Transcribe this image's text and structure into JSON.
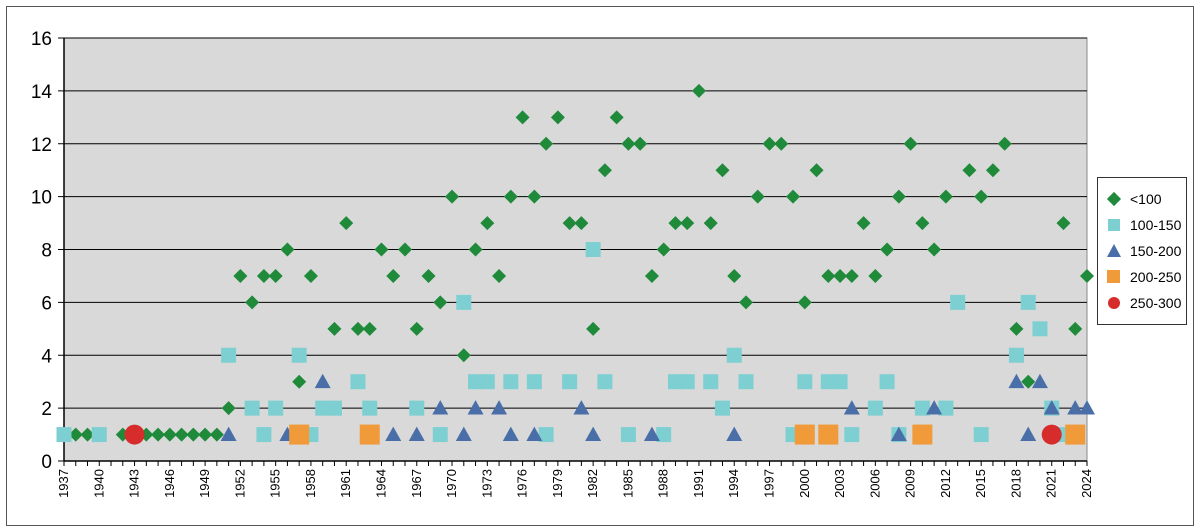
{
  "chart_data": {
    "type": "scatter",
    "title": "",
    "xlabel": "",
    "ylabel": "",
    "ylim": [
      0,
      16
    ],
    "xlim": [
      1937,
      2024
    ],
    "y_ticks": [
      "0",
      "2",
      "4",
      "6",
      "8",
      "10",
      "12",
      "14",
      "16"
    ],
    "x_ticks": [
      "1937",
      "1940",
      "1943",
      "1946",
      "1949",
      "1952",
      "1955",
      "1958",
      "1961",
      "1964",
      "1967",
      "1970",
      "1973",
      "1976",
      "1979",
      "1982",
      "1985",
      "1988",
      "1991",
      "1994",
      "1997",
      "2000",
      "2003",
      "2006",
      "2009",
      "2012",
      "2015",
      "2018",
      "2021",
      "2024"
    ],
    "grid": true,
    "legend_position": "right",
    "series": [
      {
        "name": "<100",
        "marker": "diamond",
        "color": "#1f8a3a",
        "x": [
          1938,
          1939,
          1940,
          1942,
          1944,
          1945,
          1946,
          1947,
          1948,
          1949,
          1950,
          1951,
          1952,
          1953,
          1954,
          1955,
          1956,
          1957,
          1958,
          1960,
          1961,
          1962,
          1963,
          1964,
          1965,
          1966,
          1967,
          1968,
          1969,
          1970,
          1971,
          1972,
          1973,
          1974,
          1975,
          1976,
          1977,
          1978,
          1979,
          1980,
          1981,
          1982,
          1983,
          1984,
          1985,
          1986,
          1987,
          1988,
          1989,
          1990,
          1991,
          1992,
          1993,
          1994,
          1995,
          1996,
          1997,
          1998,
          1999,
          2000,
          2001,
          2002,
          2003,
          2004,
          2005,
          2006,
          2007,
          2008,
          2009,
          2010,
          2011,
          2012,
          2014,
          2015,
          2016,
          2017,
          2018,
          2019,
          2020,
          2022,
          2023,
          2024
        ],
        "y": [
          1,
          1,
          1,
          1,
          1,
          1,
          1,
          1,
          1,
          1,
          1,
          2,
          7,
          6,
          7,
          7,
          8,
          3,
          7,
          5,
          9,
          5,
          5,
          8,
          7,
          8,
          5,
          7,
          6,
          10,
          4,
          8,
          9,
          7,
          10,
          13,
          10,
          12,
          13,
          9,
          9,
          5,
          11,
          13,
          12,
          12,
          7,
          8,
          9,
          9,
          14,
          9,
          11,
          7,
          6,
          10,
          12,
          12,
          10,
          6,
          11,
          7,
          7,
          7,
          9,
          7,
          8,
          10,
          12,
          9,
          8,
          10,
          11,
          10,
          11,
          12,
          5,
          3,
          5,
          9,
          5,
          7
        ]
      },
      {
        "name": "100-150",
        "marker": "square",
        "color": "#7ecfd2",
        "x": [
          1937,
          1940,
          1951,
          1953,
          1954,
          1955,
          1957,
          1958,
          1959,
          1960,
          1962,
          1963,
          1967,
          1969,
          1971,
          1972,
          1973,
          1975,
          1977,
          1978,
          1980,
          1982,
          1983,
          1985,
          1988,
          1989,
          1990,
          1992,
          1993,
          1994,
          1995,
          1999,
          2000,
          2002,
          2003,
          2004,
          2006,
          2007,
          2008,
          2010,
          2012,
          2013,
          2015,
          2018,
          2019,
          2020,
          2021,
          2022
        ],
        "y": [
          1,
          1,
          4,
          2,
          1,
          2,
          4,
          1,
          2,
          2,
          3,
          2,
          2,
          1,
          6,
          3,
          3,
          3,
          3,
          1,
          3,
          8,
          3,
          1,
          1,
          3,
          3,
          3,
          2,
          4,
          3,
          1,
          3,
          3,
          3,
          1,
          2,
          3,
          1,
          2,
          2,
          6,
          1,
          4,
          6,
          5,
          2,
          1
        ]
      },
      {
        "name": "150-200",
        "marker": "triangle",
        "color": "#4a6fa8",
        "x": [
          1951,
          1956,
          1959,
          1965,
          1967,
          1969,
          1971,
          1972,
          1974,
          1975,
          1977,
          1981,
          1982,
          1987,
          1994,
          2004,
          2008,
          2011,
          2018,
          2019,
          2020,
          2021,
          2023,
          2024
        ],
        "y": [
          1,
          1,
          3,
          1,
          1,
          2,
          1,
          2,
          2,
          1,
          1,
          2,
          1,
          1,
          1,
          2,
          1,
          2,
          3,
          1,
          3,
          2,
          2,
          2
        ]
      },
      {
        "name": "200-250",
        "marker": "square-large",
        "color": "#f09a3a",
        "x": [
          1957,
          1963,
          2000,
          2002,
          2010,
          2023
        ],
        "y": [
          1,
          1,
          1,
          1,
          1,
          1
        ]
      },
      {
        "name": "250-300",
        "marker": "circle",
        "color": "#d62c2c",
        "x": [
          1943,
          2021
        ],
        "y": [
          1,
          1
        ]
      }
    ]
  }
}
